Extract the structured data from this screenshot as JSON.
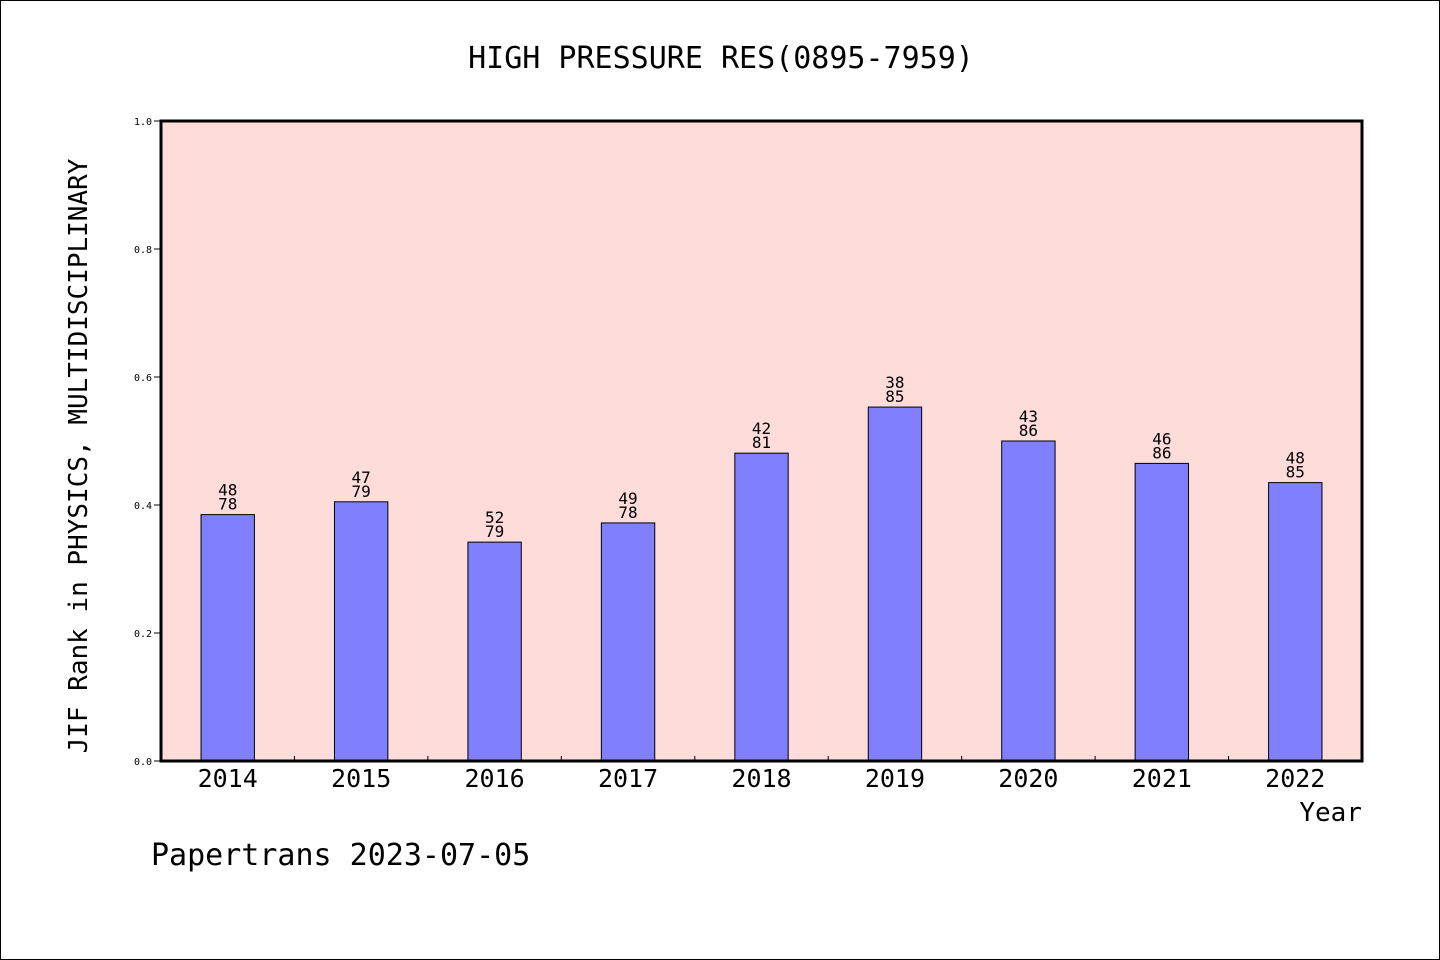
{
  "chart_data": {
    "type": "bar",
    "title": "HIGH PRESSURE RES(0895-7959)",
    "xlabel": "Year",
    "ylabel": "JIF Rank in PHYSICS, MULTIDISCIPLINARY",
    "ylim": [
      0.0,
      1.0
    ],
    "yticks": [
      "0.0",
      "0.2",
      "0.4",
      "0.6",
      "0.8",
      "1.0"
    ],
    "grid": false,
    "legend": "none",
    "categories": [
      "2014",
      "2015",
      "2016",
      "2017",
      "2018",
      "2019",
      "2020",
      "2021",
      "2022"
    ],
    "values": [
      0.385,
      0.405,
      0.342,
      0.372,
      0.481,
      0.553,
      0.5,
      0.465,
      0.435
    ],
    "bar_labels": [
      [
        "48",
        "78"
      ],
      [
        "47",
        "79"
      ],
      [
        "52",
        "79"
      ],
      [
        "49",
        "78"
      ],
      [
        "42",
        "81"
      ],
      [
        "38",
        "85"
      ],
      [
        "43",
        "86"
      ],
      [
        "46",
        "86"
      ],
      [
        "48",
        "85"
      ]
    ],
    "colors": {
      "bar": "#8080ff",
      "plot_background": "#fddcd9",
      "axis": "#000000"
    }
  },
  "footer": {
    "text": "Papertrans 2023-07-05"
  }
}
